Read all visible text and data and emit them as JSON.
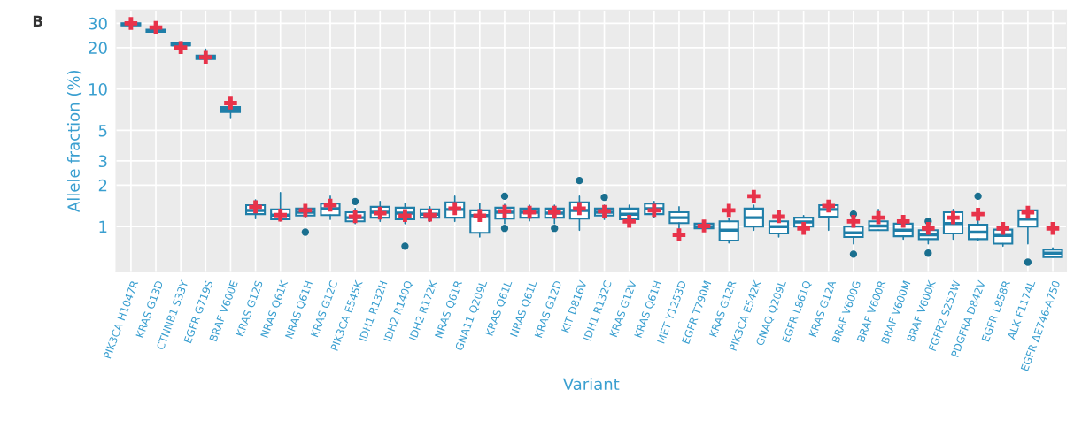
{
  "chart_data": {
    "type": "box",
    "annotations": [
      "B"
    ],
    "xlabel": "Variant",
    "ylabel": "Allele fraction (%)",
    "categories": [
      "PIK3CA H1047R",
      "KRAS G13D",
      "CTNNB1 S33Y",
      "EGFR G719S",
      "BRAF V600E",
      "KRAS G12S",
      "NRAS Q61K",
      "NRAS Q61H",
      "KRAS G12C",
      "PIK3CA E545K",
      "IDH1 R132H",
      "IDH2 R140Q",
      "IDH2 R172K",
      "NRAS Q61R",
      "GNA11 Q209L",
      "KRAS Q61L",
      "NRAS Q61L",
      "KRAS G12D",
      "KIT D816V",
      "IDH1 R132C",
      "KRAS G12V",
      "KRAS Q61H",
      "MET Y1253D",
      "EGFR T790M",
      "KRAS G12R",
      "PIK3CA E542K",
      "GNAQ Q209L",
      "EGFR L861Q",
      "KRAS G12A",
      "BRAF V600G",
      "BRAF V600R",
      "BRAF V600M",
      "BRAF V600K",
      "FGFR2 S252W",
      "PDGFRA D842V",
      "EGFR L858R",
      "ALK F1174L",
      "EGFR ΔE746-A750"
    ],
    "ylim": [
      0.47,
      37.5
    ],
    "yticks": [
      1,
      2,
      3,
      5,
      10,
      20,
      30
    ],
    "log": "y",
    "grid": true,
    "series": [
      {
        "type": "box",
        "color": "#1f7ea8",
        "boxes": [
          {
            "low": 28,
            "q1": 29,
            "median": 29.5,
            "q3": 30,
            "high": 31
          },
          {
            "low": 25.5,
            "q1": 26,
            "median": 26.5,
            "q3": 27,
            "high": 27.5
          },
          {
            "low": 20.5,
            "q1": 20.8,
            "median": 21,
            "q3": 21.5,
            "high": 22
          },
          {
            "low": 15.5,
            "q1": 16.5,
            "median": 17,
            "q3": 17.5,
            "high": 19.5
          },
          {
            "low": 6.2,
            "q1": 6.8,
            "median": 7.1,
            "q3": 7.4,
            "high": 8
          },
          {
            "low": 1.14,
            "q1": 1.23,
            "median": 1.31,
            "q3": 1.43,
            "high": 1.56
          },
          {
            "low": 1.1,
            "q1": 1.13,
            "median": 1.21,
            "q3": 1.33,
            "high": 1.76
          },
          {
            "low": 1.16,
            "q1": 1.2,
            "median": 1.27,
            "q3": 1.35,
            "high": 1.4,
            "outliers": [
              0.91
            ]
          },
          {
            "low": 1.13,
            "q1": 1.21,
            "median": 1.35,
            "q3": 1.47,
            "high": 1.66
          },
          {
            "low": 1.05,
            "q1": 1.09,
            "median": 1.16,
            "q3": 1.27,
            "high": 1.35,
            "outliers": [
              1.52
            ]
          },
          {
            "low": 1.09,
            "q1": 1.16,
            "median": 1.27,
            "q3": 1.39,
            "high": 1.52
          },
          {
            "low": 1.05,
            "q1": 1.13,
            "median": 1.25,
            "q3": 1.37,
            "high": 1.47,
            "outliers": [
              0.72
            ]
          },
          {
            "low": 1.09,
            "q1": 1.16,
            "median": 1.23,
            "q3": 1.33,
            "high": 1.39
          },
          {
            "low": 1.09,
            "q1": 1.16,
            "median": 1.33,
            "q3": 1.5,
            "high": 1.66
          },
          {
            "low": 0.84,
            "q1": 0.9,
            "median": 1.2,
            "q3": 1.31,
            "high": 1.47
          },
          {
            "low": 1.05,
            "q1": 1.14,
            "median": 1.27,
            "q3": 1.37,
            "high": 1.45,
            "outliers": [
              1.66,
              0.97
            ]
          },
          {
            "low": 1.1,
            "q1": 1.16,
            "median": 1.27,
            "q3": 1.35,
            "high": 1.43
          },
          {
            "low": 1.05,
            "q1": 1.16,
            "median": 1.25,
            "q3": 1.35,
            "high": 1.43,
            "outliers": [
              0.97
            ]
          },
          {
            "low": 0.94,
            "q1": 1.14,
            "median": 1.31,
            "q3": 1.5,
            "high": 1.66,
            "outliers": [
              2.16
            ]
          },
          {
            "low": 1.13,
            "q1": 1.2,
            "median": 1.27,
            "q3": 1.35,
            "high": 1.43,
            "outliers": [
              1.63
            ]
          },
          {
            "low": 1.06,
            "q1": 1.13,
            "median": 1.23,
            "q3": 1.35,
            "high": 1.43
          },
          {
            "low": 1.16,
            "q1": 1.23,
            "median": 1.35,
            "q3": 1.47,
            "high": 1.52
          },
          {
            "low": 0.94,
            "q1": 1.06,
            "median": 1.16,
            "q3": 1.27,
            "high": 1.39
          },
          {
            "low": 0.94,
            "q1": 0.97,
            "median": 1.0,
            "q3": 1.05,
            "high": 1.09
          },
          {
            "low": 0.76,
            "q1": 0.79,
            "median": 0.94,
            "q3": 1.09,
            "high": 1.14
          },
          {
            "low": 0.94,
            "q1": 1.0,
            "median": 1.16,
            "q3": 1.35,
            "high": 1.43
          },
          {
            "low": 0.84,
            "q1": 0.89,
            "median": 1.0,
            "q3": 1.09,
            "high": 1.2
          },
          {
            "low": 0.94,
            "q1": 1.0,
            "median": 1.08,
            "q3": 1.16,
            "high": 1.2
          },
          {
            "low": 0.94,
            "q1": 1.18,
            "median": 1.33,
            "q3": 1.43,
            "high": 1.5
          },
          {
            "low": 0.75,
            "q1": 0.84,
            "median": 0.9,
            "q3": 1.0,
            "high": 1.09,
            "outliers": [
              1.23,
              0.63
            ]
          },
          {
            "low": 0.94,
            "q1": 0.94,
            "median": 1.01,
            "q3": 1.09,
            "high": 1.33
          },
          {
            "low": 0.81,
            "q1": 0.85,
            "median": 0.94,
            "q3": 1.05,
            "high": 1.13
          },
          {
            "low": 0.75,
            "q1": 0.81,
            "median": 0.87,
            "q3": 0.94,
            "high": 1.05,
            "outliers": [
              1.09,
              0.64
            ]
          },
          {
            "low": 0.81,
            "q1": 0.89,
            "median": 1.05,
            "q3": 1.27,
            "high": 1.33
          },
          {
            "low": 0.79,
            "q1": 0.81,
            "median": 0.91,
            "q3": 1.03,
            "high": 1.2,
            "outliers": [
              1.66
            ]
          },
          {
            "low": 0.72,
            "q1": 0.75,
            "median": 0.86,
            "q3": 0.95,
            "high": 1.0
          },
          {
            "low": 0.75,
            "q1": 1.0,
            "median": 1.13,
            "q3": 1.31,
            "high": 1.39,
            "outliers": [
              0.55
            ]
          },
          {
            "low": 0.6,
            "q1": 0.6,
            "median": 0.64,
            "q3": 0.68,
            "high": 0.7
          }
        ]
      },
      {
        "type": "scatter",
        "color": "#e8334a",
        "marker": "cross",
        "x": [
          "PIK3CA H1047R",
          "KRAS G13D",
          "CTNNB1 S33Y",
          "EGFR G719S",
          "BRAF V600E",
          "KRAS G12S",
          "NRAS Q61K",
          "NRAS Q61H",
          "KRAS G12C",
          "PIK3CA E545K",
          "IDH1 R132H",
          "IDH2 R140Q",
          "IDH2 R172K",
          "NRAS Q61R",
          "GNA11 Q209L",
          "KRAS Q61L",
          "NRAS Q61L",
          "KRAS G12D",
          "KIT D816V",
          "IDH1 R132C",
          "KRAS G12V",
          "KRAS Q61H",
          "MET Y1253D",
          "EGFR T790M",
          "KRAS G12R",
          "PIK3CA E542K",
          "GNAQ Q209L",
          "EGFR L861Q",
          "KRAS G12A",
          "BRAF V600G",
          "BRAF V600R",
          "BRAF V600M",
          "BRAF V600K",
          "FGFR2 S252W",
          "PDGFRA D842V",
          "EGFR L858R",
          "ALK F1174L",
          "EGFR ΔE746-A750"
        ],
        "values": [
          30,
          28,
          20,
          17,
          7.9,
          1.39,
          1.21,
          1.31,
          1.43,
          1.18,
          1.25,
          1.2,
          1.21,
          1.35,
          1.2,
          1.29,
          1.27,
          1.27,
          1.35,
          1.29,
          1.09,
          1.31,
          0.87,
          1.01,
          1.31,
          1.66,
          1.18,
          0.97,
          1.41,
          1.09,
          1.16,
          1.09,
          0.97,
          1.16,
          1.23,
          0.97,
          1.27,
          0.97
        ]
      }
    ]
  }
}
